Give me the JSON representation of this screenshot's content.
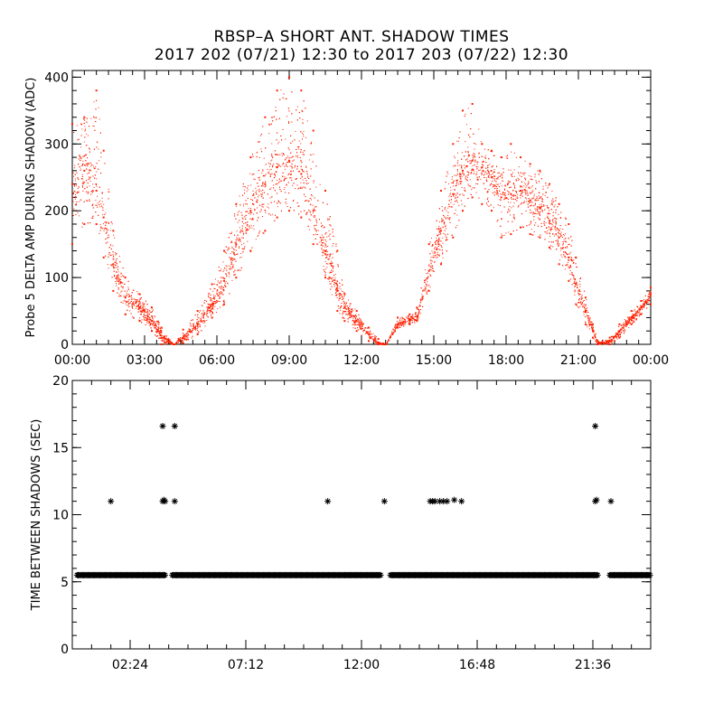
{
  "title": "RBSP–A SHORT ANT. SHADOW TIMES",
  "subtitle": "2017 202 (07/21) 12:30 to 2017 203 (07/22) 12:30",
  "chart_data": [
    {
      "type": "scatter",
      "ylabel": "Probe 5 DELTA AMP DURING SHADOW (ADC)",
      "xlabel": "",
      "xlim": [
        0,
        24
      ],
      "ylim": [
        0,
        410
      ],
      "x_ticks": [
        0,
        3,
        6,
        9,
        12,
        15,
        18,
        21,
        24
      ],
      "x_tick_labels": [
        "00:00",
        "03:00",
        "06:00",
        "09:00",
        "12:00",
        "15:00",
        "18:00",
        "21:00",
        "00:00"
      ],
      "y_ticks": [
        0,
        100,
        200,
        300,
        400
      ],
      "y_tick_labels": [
        "0",
        "100",
        "200",
        "300",
        "400"
      ],
      "color": "#ff2000",
      "series": [
        {
          "name": "delta_amp_trend",
          "x": [
            0,
            0.5,
            1,
            1.3,
            1.7,
            2.2,
            2.8,
            3.3,
            3.7,
            4.2,
            4.6,
            5.2,
            5.8,
            6.3,
            6.8,
            7.4,
            8,
            8.5,
            9,
            9.5,
            10,
            10.5,
            11,
            11.3,
            11.8,
            12.3,
            12.7,
            13,
            13.5,
            14,
            14.3,
            14.8,
            15.3,
            15.8,
            16.2,
            16.6,
            17,
            17.4,
            17.8,
            18.2,
            18.6,
            19,
            19.4,
            19.8,
            20.2,
            20.6,
            20.9,
            21.3,
            21.6,
            21.8,
            22.3,
            22.7,
            23.2,
            23.6,
            24
          ],
          "y": [
            240,
            260,
            230,
            190,
            120,
            70,
            55,
            35,
            10,
            0,
            10,
            30,
            60,
            95,
            150,
            200,
            240,
            265,
            275,
            255,
            200,
            140,
            80,
            55,
            35,
            15,
            2,
            0,
            30,
            38,
            42,
            110,
            170,
            225,
            260,
            275,
            265,
            250,
            220,
            225,
            230,
            215,
            205,
            185,
            160,
            130,
            90,
            50,
            20,
            2,
            5,
            20,
            40,
            55,
            75
          ]
        },
        {
          "name": "delta_amp_upper",
          "x": [
            0,
            0.5,
            1,
            1.3,
            1.7,
            2.2,
            2.8,
            3.3,
            3.7,
            4.2,
            4.6,
            5.2,
            5.8,
            6.3,
            6.8,
            7.4,
            8,
            8.5,
            9,
            9.5,
            10,
            10.5,
            11,
            11.3,
            11.8,
            12.3,
            12.7,
            13,
            13.5,
            14,
            14.3,
            14.8,
            15.3,
            15.8,
            16.2,
            16.6,
            17,
            17.4,
            17.8,
            18.2,
            18.6,
            19,
            19.4,
            19.8,
            20.2,
            20.6,
            20.9,
            21.3,
            21.6,
            21.8,
            22.3,
            22.7,
            23.2,
            23.6,
            24
          ],
          "y": [
            330,
            340,
            380,
            290,
            170,
            100,
            75,
            55,
            25,
            0,
            22,
            50,
            90,
            140,
            210,
            280,
            340,
            380,
            400,
            380,
            320,
            230,
            140,
            75,
            50,
            25,
            8,
            0,
            40,
            45,
            55,
            150,
            230,
            300,
            350,
            360,
            300,
            290,
            280,
            300,
            280,
            270,
            260,
            240,
            210,
            180,
            130,
            70,
            30,
            5,
            10,
            30,
            50,
            65,
            85
          ]
        },
        {
          "name": "delta_amp_lower",
          "x": [
            0,
            0.5,
            1,
            1.3,
            1.7,
            2.2,
            2.8,
            3.3,
            3.7,
            4.2,
            4.6,
            5.2,
            5.8,
            6.3,
            6.8,
            7.4,
            8,
            8.5,
            9,
            9.5,
            10,
            10.5,
            11,
            11.3,
            11.8,
            12.3,
            12.7,
            13,
            13.5,
            14,
            14.3,
            14.8,
            15.3,
            15.8,
            16.2,
            16.6,
            17,
            17.4,
            17.8,
            18.2,
            18.6,
            19,
            19.4,
            19.8,
            20.2,
            20.6,
            20.9,
            21.3,
            21.6,
            21.8,
            22.3,
            22.7,
            23.2,
            23.6,
            24
          ],
          "y": [
            150,
            180,
            180,
            130,
            80,
            45,
            35,
            20,
            0,
            0,
            2,
            15,
            40,
            60,
            100,
            140,
            170,
            190,
            200,
            190,
            150,
            100,
            50,
            35,
            20,
            5,
            0,
            0,
            25,
            30,
            35,
            80,
            120,
            160,
            200,
            220,
            210,
            200,
            160,
            165,
            175,
            165,
            160,
            145,
            120,
            95,
            60,
            30,
            10,
            0,
            0,
            10,
            30,
            45,
            60
          ]
        }
      ]
    },
    {
      "type": "scatter",
      "ylabel": "TIME BETWEEN SHADOWS (SEC)",
      "xlabel": "",
      "xlim": [
        0,
        24
      ],
      "ylim": [
        0,
        20
      ],
      "x_ticks": [
        2.4,
        7.2,
        12.0,
        16.8,
        21.6
      ],
      "x_tick_labels": [
        "02:24",
        "07:12",
        "12:00",
        "16:48",
        "21:36"
      ],
      "y_ticks": [
        0,
        5,
        10,
        15,
        20
      ],
      "y_tick_labels": [
        "0",
        "5",
        "10",
        "15",
        "20"
      ],
      "marker": "*",
      "baseline": {
        "value": 5.5,
        "segments": [
          [
            0.2,
            3.85
          ],
          [
            4.15,
            12.8
          ],
          [
            13.2,
            21.8
          ],
          [
            22.3,
            24
          ]
        ]
      },
      "outliers": {
        "x": [
          1.6,
          3.75,
          3.8,
          3.85,
          4.25,
          10.6,
          12.95,
          14.85,
          14.95,
          15.05,
          15.25,
          15.4,
          15.55,
          15.85,
          16.15,
          21.7,
          21.75,
          22.35,
          3.75,
          4.25,
          21.7
        ],
        "y": [
          11,
          11,
          11.1,
          11,
          11,
          11,
          11,
          11,
          11,
          11,
          11,
          11,
          11,
          11.1,
          11,
          11,
          11.1,
          11,
          16.6,
          16.6,
          16.6
        ]
      }
    }
  ]
}
